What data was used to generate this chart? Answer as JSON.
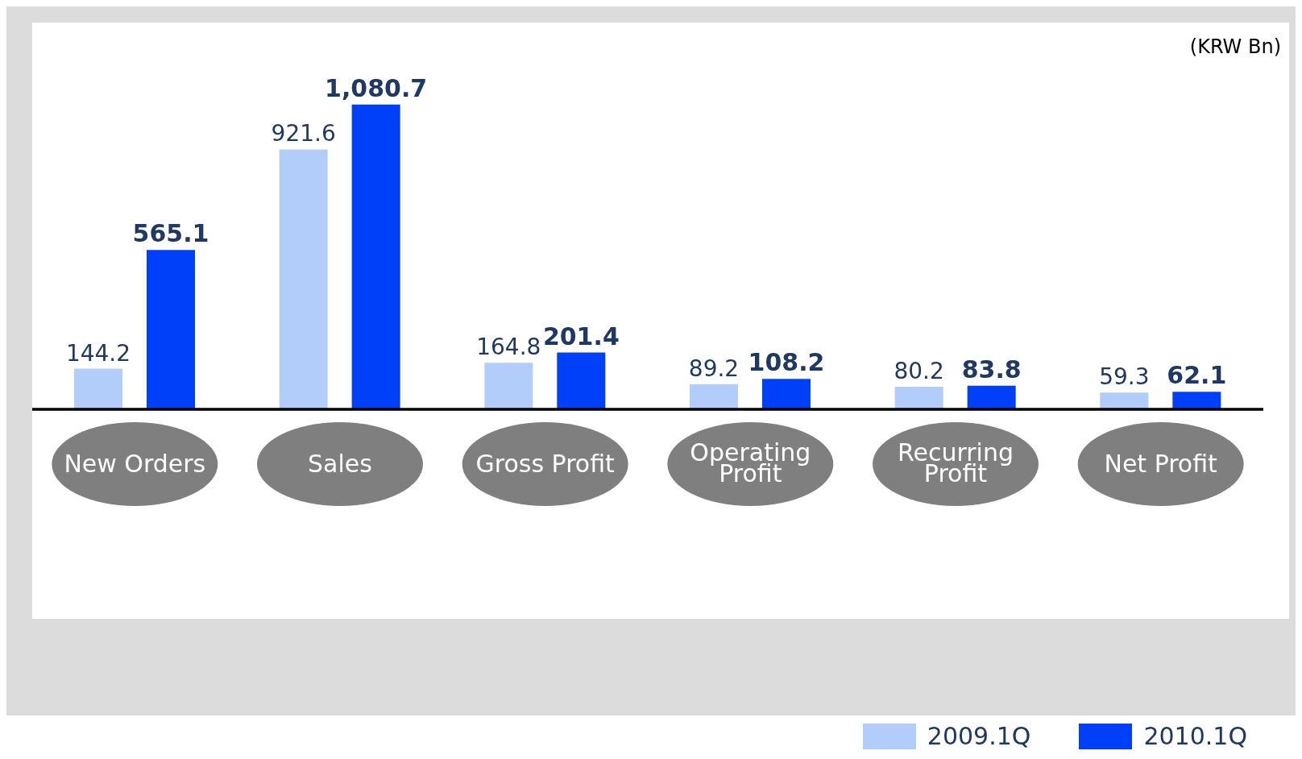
{
  "chart_data": {
    "type": "bar",
    "categories": [
      "New Orders",
      "Sales",
      "Gross Profit",
      "Operating Profit",
      "Recurring Profit",
      "Net Profit"
    ],
    "series": [
      {
        "name": "2009.1Q",
        "color": "#b3cdfb",
        "values": [
          144.2,
          921.6,
          164.8,
          89.2,
          80.2,
          59.3
        ],
        "value_labels": [
          "144.2",
          "921.6",
          "164.8",
          "89.2",
          "80.2",
          "59.3"
        ]
      },
      {
        "name": "2010.1Q",
        "color": "#0040f8",
        "values": [
          565.1,
          1080.7,
          201.4,
          108.2,
          83.8,
          62.1
        ],
        "value_labels": [
          "565.1",
          "1,080.7",
          "201.4",
          "108.2",
          "83.8",
          "62.1"
        ]
      }
    ],
    "annotations": [
      "(KRW Bn)"
    ],
    "legend": "bottom right",
    "grid": false
  }
}
